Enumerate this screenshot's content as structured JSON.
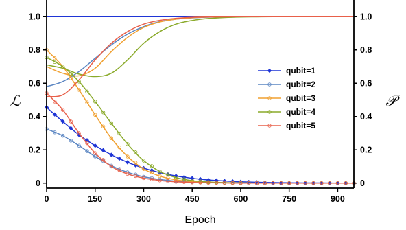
{
  "chart_data": {
    "type": "line",
    "title": "",
    "xlabel": "Epoch",
    "ylabel_left": "ℒ",
    "ylabel_right": "𝒫",
    "xlim": [
      0,
      950
    ],
    "ylim": [
      -0.03,
      1.1
    ],
    "x_ticks": [
      0,
      150,
      300,
      450,
      600,
      750,
      900
    ],
    "y_ticks": [
      0,
      0.2,
      0.4,
      0.6,
      0.8,
      1.0
    ],
    "y_tick_labels": [
      "0",
      "0.2",
      "0.4",
      "0.6",
      "0.8",
      "1.0"
    ],
    "grid": false,
    "legend_position": "right",
    "loss_series": [
      {
        "name": "qubit=1",
        "color": "#1f35d6",
        "marker": "diamond",
        "x": [
          0,
          50,
          100,
          150,
          200,
          250,
          300,
          350,
          400,
          450,
          500,
          550,
          600,
          650,
          700,
          750,
          800,
          850,
          900,
          950
        ],
        "y": [
          0.455,
          0.37,
          0.29,
          0.225,
          0.17,
          0.125,
          0.09,
          0.063,
          0.043,
          0.029,
          0.019,
          0.013,
          0.008,
          0.005,
          0.003,
          0.002,
          0.001,
          0.001,
          0.0,
          0.0
        ]
      },
      {
        "name": "qubit=2",
        "color": "#5a85c2",
        "marker": "circle",
        "x": [
          0,
          50,
          100,
          150,
          200,
          250,
          300,
          350,
          400,
          450,
          500,
          550,
          600,
          650,
          700,
          750,
          800,
          850,
          900,
          950
        ],
        "y": [
          0.325,
          0.285,
          0.225,
          0.16,
          0.105,
          0.065,
          0.038,
          0.022,
          0.012,
          0.007,
          0.004,
          0.002,
          0.001,
          0.0,
          0.0,
          0.0,
          0.0,
          0.0,
          0.0,
          0.0
        ]
      },
      {
        "name": "qubit=3",
        "color": "#f0a030",
        "marker": "circle",
        "x": [
          0,
          50,
          100,
          150,
          200,
          250,
          300,
          350,
          400,
          450,
          500,
          550,
          600,
          650,
          700,
          750,
          800,
          850,
          900,
          950
        ],
        "y": [
          0.8,
          0.7,
          0.56,
          0.41,
          0.27,
          0.16,
          0.085,
          0.042,
          0.02,
          0.009,
          0.004,
          0.002,
          0.001,
          0.0,
          0.0,
          0.0,
          0.0,
          0.0,
          0.0,
          0.0
        ]
      },
      {
        "name": "qubit=4",
        "color": "#8aaa2a",
        "marker": "circle",
        "x": [
          0,
          50,
          100,
          150,
          200,
          250,
          300,
          350,
          400,
          450,
          500,
          550,
          600,
          650,
          700,
          750,
          800,
          850,
          900,
          950
        ],
        "y": [
          0.755,
          0.7,
          0.61,
          0.49,
          0.36,
          0.235,
          0.135,
          0.07,
          0.033,
          0.015,
          0.007,
          0.003,
          0.001,
          0.0,
          0.0,
          0.0,
          0.0,
          0.0,
          0.0,
          0.0
        ]
      },
      {
        "name": "qubit=5",
        "color": "#e8604a",
        "marker": "circle",
        "x": [
          0,
          50,
          100,
          150,
          200,
          250,
          300,
          350,
          400,
          450,
          500,
          550,
          600,
          650,
          700,
          750,
          800,
          850,
          900,
          950
        ],
        "y": [
          0.54,
          0.44,
          0.3,
          0.18,
          0.1,
          0.055,
          0.03,
          0.016,
          0.008,
          0.004,
          0.002,
          0.001,
          0.0,
          0.0,
          0.0,
          0.0,
          0.0,
          0.0,
          0.0,
          0.0
        ]
      }
    ],
    "probability_series": [
      {
        "name": "qubit=1",
        "color": "#1f35d6",
        "x": [
          0,
          950
        ],
        "y": [
          1.0,
          1.0
        ]
      },
      {
        "name": "qubit=2",
        "color": "#5a85c2",
        "x": [
          0,
          50,
          100,
          150,
          200,
          250,
          300,
          350,
          400,
          450,
          500,
          550,
          600,
          650,
          700,
          750,
          800,
          850,
          900,
          950
        ],
        "y": [
          0.58,
          0.61,
          0.67,
          0.75,
          0.83,
          0.895,
          0.94,
          0.97,
          0.985,
          0.993,
          0.997,
          0.999,
          1.0,
          1.0,
          1.0,
          1.0,
          1.0,
          1.0,
          1.0,
          1.0
        ]
      },
      {
        "name": "qubit=3",
        "color": "#f0a030",
        "x": [
          0,
          50,
          100,
          150,
          200,
          250,
          300,
          350,
          400,
          450,
          500,
          550,
          600,
          650,
          700,
          750,
          800,
          850,
          900,
          950
        ],
        "y": [
          0.7,
          0.66,
          0.645,
          0.69,
          0.79,
          0.875,
          0.935,
          0.968,
          0.985,
          0.994,
          0.998,
          0.999,
          1.0,
          1.0,
          1.0,
          1.0,
          1.0,
          1.0,
          1.0,
          1.0
        ]
      },
      {
        "name": "qubit=4",
        "color": "#8aaa2a",
        "x": [
          0,
          50,
          100,
          150,
          200,
          250,
          300,
          350,
          400,
          450,
          500,
          550,
          600,
          650,
          700,
          750,
          800,
          850,
          900,
          950
        ],
        "y": [
          0.71,
          0.69,
          0.655,
          0.64,
          0.66,
          0.74,
          0.84,
          0.91,
          0.955,
          0.977,
          0.989,
          0.995,
          0.998,
          0.999,
          1.0,
          1.0,
          1.0,
          1.0,
          1.0,
          1.0
        ]
      },
      {
        "name": "qubit=5",
        "color": "#e8604a",
        "x": [
          0,
          50,
          100,
          150,
          200,
          250,
          300,
          350,
          400,
          450,
          500,
          550,
          600,
          650,
          700,
          750,
          800,
          850,
          900,
          950
        ],
        "y": [
          0.52,
          0.53,
          0.62,
          0.74,
          0.84,
          0.91,
          0.955,
          0.978,
          0.99,
          0.996,
          0.998,
          0.999,
          1.0,
          1.0,
          1.0,
          1.0,
          1.0,
          1.0,
          1.0,
          1.0
        ]
      }
    ]
  }
}
